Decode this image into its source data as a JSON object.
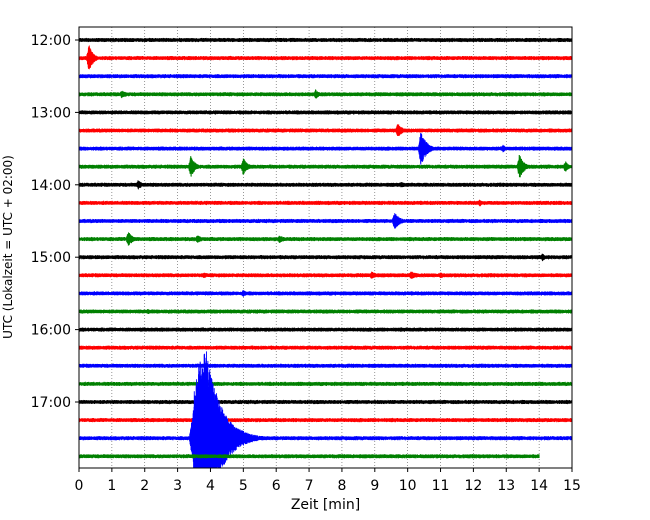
{
  "chart_data": {
    "type": "line",
    "xlabel": "Zeit  [min]",
    "ylabel": "UTC (Lokalzeit = UTC + 02:00)",
    "xlim": [
      0,
      15
    ],
    "x_ticks": [
      0,
      1,
      2,
      3,
      4,
      5,
      6,
      7,
      8,
      9,
      10,
      11,
      12,
      13,
      14,
      15
    ],
    "y_ticks": [
      {
        "label": "12:00",
        "trace": 0
      },
      {
        "label": "13:00",
        "trace": 4
      },
      {
        "label": "14:00",
        "trace": 8
      },
      {
        "label": "15:00",
        "trace": 12
      },
      {
        "label": "16:00",
        "trace": 16
      },
      {
        "label": "17:00",
        "trace": 20
      }
    ],
    "trace_interval_min": 15,
    "grid": "vertical dotted",
    "colors": [
      "#000000",
      "#ff0000",
      "#0000ff",
      "#008000"
    ],
    "traces": [
      {
        "start": "12:00",
        "color": "#000000",
        "events": []
      },
      {
        "start": "12:15",
        "color": "#ff0000",
        "events": [
          {
            "t": 0.3,
            "amp": 14,
            "dur": 0.4
          }
        ]
      },
      {
        "start": "12:30",
        "color": "#0000ff",
        "events": []
      },
      {
        "start": "12:45",
        "color": "#008000",
        "events": [
          {
            "t": 1.3,
            "amp": 4,
            "dur": 0.6
          },
          {
            "t": 7.2,
            "amp": 5,
            "dur": 0.4
          }
        ]
      },
      {
        "start": "13:00",
        "color": "#000000",
        "events": []
      },
      {
        "start": "13:15",
        "color": "#ff0000",
        "events": [
          {
            "t": 9.7,
            "amp": 8,
            "dur": 0.4
          }
        ]
      },
      {
        "start": "13:30",
        "color": "#0000ff",
        "events": [
          {
            "t": 10.4,
            "amp": 18,
            "dur": 0.5
          },
          {
            "t": 12.9,
            "amp": 4,
            "dur": 0.4
          }
        ]
      },
      {
        "start": "13:45",
        "color": "#008000",
        "events": [
          {
            "t": 3.4,
            "amp": 11,
            "dur": 0.4
          },
          {
            "t": 5.0,
            "amp": 9,
            "dur": 0.4
          },
          {
            "t": 13.4,
            "amp": 13,
            "dur": 0.4
          },
          {
            "t": 14.8,
            "amp": 6,
            "dur": 0.3
          }
        ]
      },
      {
        "start": "14:00",
        "color": "#000000",
        "events": [
          {
            "t": 1.8,
            "amp": 5,
            "dur": 0.4
          },
          {
            "t": 9.8,
            "amp": 3,
            "dur": 0.6
          }
        ]
      },
      {
        "start": "14:15",
        "color": "#ff0000",
        "events": [
          {
            "t": 12.2,
            "amp": 4,
            "dur": 0.2
          }
        ]
      },
      {
        "start": "14:30",
        "color": "#0000ff",
        "events": [
          {
            "t": 9.6,
            "amp": 9,
            "dur": 0.5
          }
        ]
      },
      {
        "start": "14:45",
        "color": "#008000",
        "events": [
          {
            "t": 1.5,
            "amp": 8,
            "dur": 0.4
          },
          {
            "t": 3.6,
            "amp": 4,
            "dur": 0.6
          },
          {
            "t": 6.1,
            "amp": 4,
            "dur": 0.6
          }
        ]
      },
      {
        "start": "15:00",
        "color": "#000000",
        "events": [
          {
            "t": 14.1,
            "amp": 4,
            "dur": 0.4
          }
        ]
      },
      {
        "start": "15:15",
        "color": "#ff0000",
        "events": [
          {
            "t": 3.8,
            "amp": 3,
            "dur": 0.5
          },
          {
            "t": 8.9,
            "amp": 4,
            "dur": 0.6
          },
          {
            "t": 10.1,
            "amp": 4,
            "dur": 0.8
          },
          {
            "t": 11.0,
            "amp": 3,
            "dur": 0.6
          }
        ]
      },
      {
        "start": "15:30",
        "color": "#0000ff",
        "events": [
          {
            "t": 5.0,
            "amp": 4,
            "dur": 0.3
          }
        ]
      },
      {
        "start": "15:45",
        "color": "#008000",
        "events": [
          {
            "t": 2.1,
            "amp": 3,
            "dur": 0.3
          }
        ]
      },
      {
        "start": "16:00",
        "color": "#000000",
        "events": []
      },
      {
        "start": "16:15",
        "color": "#ff0000",
        "events": []
      },
      {
        "start": "16:30",
        "color": "#0000ff",
        "events": []
      },
      {
        "start": "16:45",
        "color": "#008000",
        "events": [
          {
            "t": 0.4,
            "amp": 2,
            "dur": 0.3
          }
        ]
      },
      {
        "start": "17:00",
        "color": "#000000",
        "events": []
      },
      {
        "start": "17:15",
        "color": "#ff0000",
        "events": []
      },
      {
        "start": "17:30",
        "color": "#0000ff",
        "events": [
          {
            "t": 3.5,
            "amp": 95,
            "dur": 3.2,
            "big": true
          }
        ]
      },
      {
        "start": "17:45",
        "color": "#008000",
        "end": 14.0,
        "events": []
      }
    ]
  }
}
